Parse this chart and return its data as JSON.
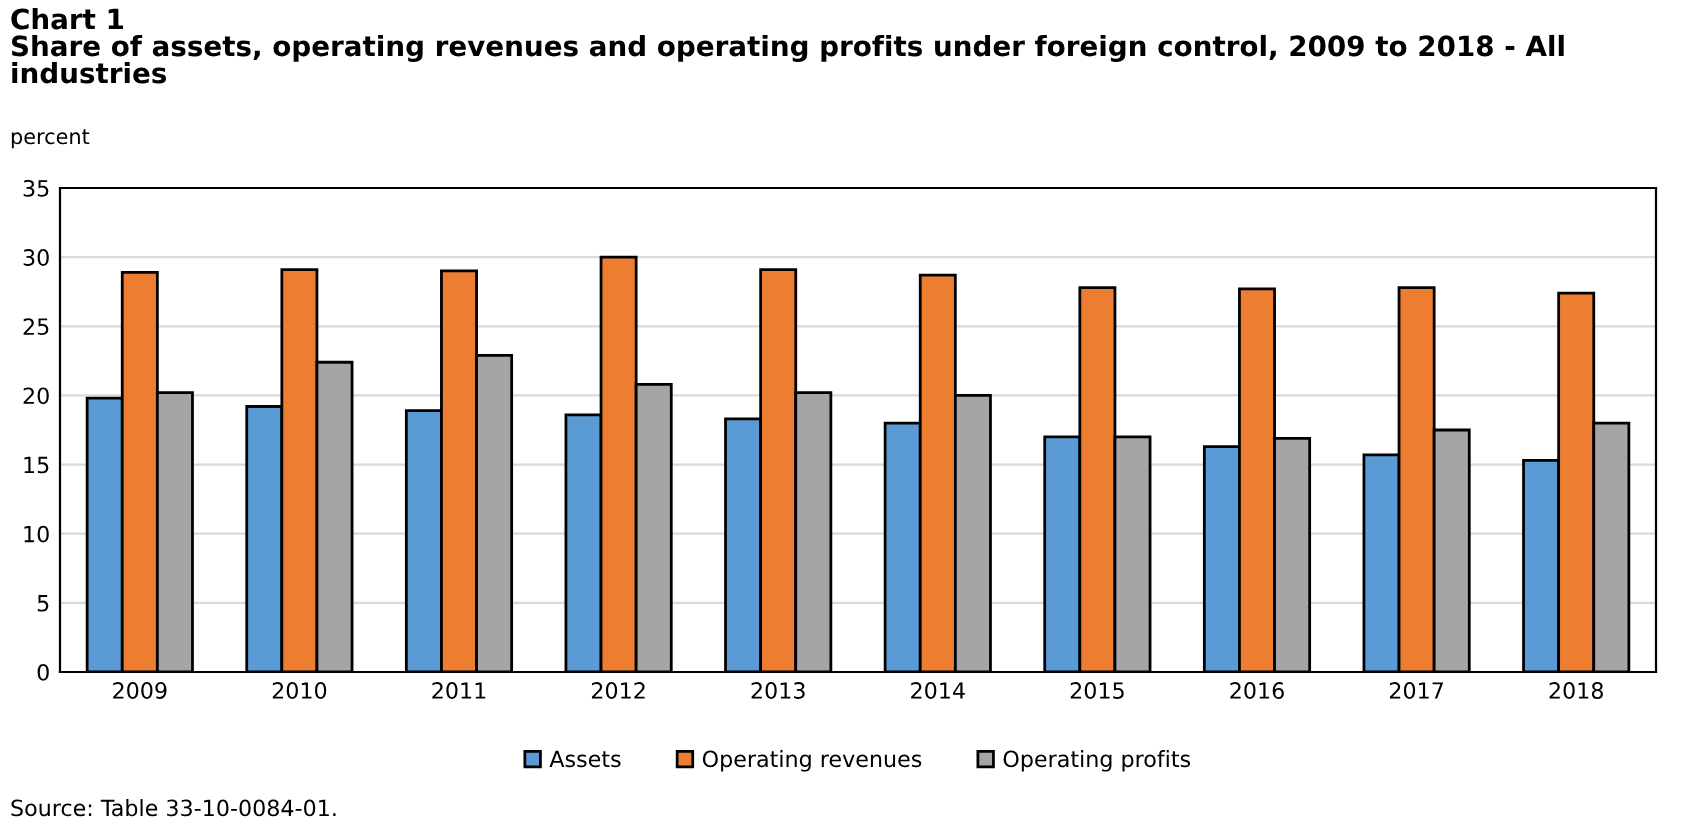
{
  "chart_data": {
    "type": "bar",
    "title": "Chart 1\nShare of assets, operating revenues and operating profits under foreign control, 2009 to 2018 - All industries",
    "ylabel": "percent",
    "categories": [
      "2009",
      "2010",
      "2011",
      "2012",
      "2013",
      "2014",
      "2015",
      "2016",
      "2017",
      "2018"
    ],
    "series": [
      {
        "name": "Assets",
        "color": "#5b9bd5",
        "values": [
          19.8,
          19.2,
          18.9,
          18.6,
          18.3,
          18.0,
          17.0,
          16.3,
          15.7,
          15.3
        ]
      },
      {
        "name": "Operating revenues",
        "color": "#ed7d31",
        "values": [
          28.9,
          29.1,
          29.0,
          30.0,
          29.1,
          28.7,
          27.8,
          27.7,
          27.8,
          27.4
        ]
      },
      {
        "name": "Operating profits",
        "color": "#a5a5a5",
        "values": [
          20.2,
          22.4,
          22.9,
          20.8,
          20.2,
          20.0,
          17.0,
          16.9,
          17.5,
          18.0
        ]
      }
    ],
    "ylim": [
      0,
      35
    ],
    "yticks": [
      0,
      5,
      10,
      15,
      20,
      25,
      30,
      35
    ],
    "grid": "y",
    "legend": "bottom",
    "annotations": [
      "Source: Table 33-10-0084-01."
    ]
  }
}
